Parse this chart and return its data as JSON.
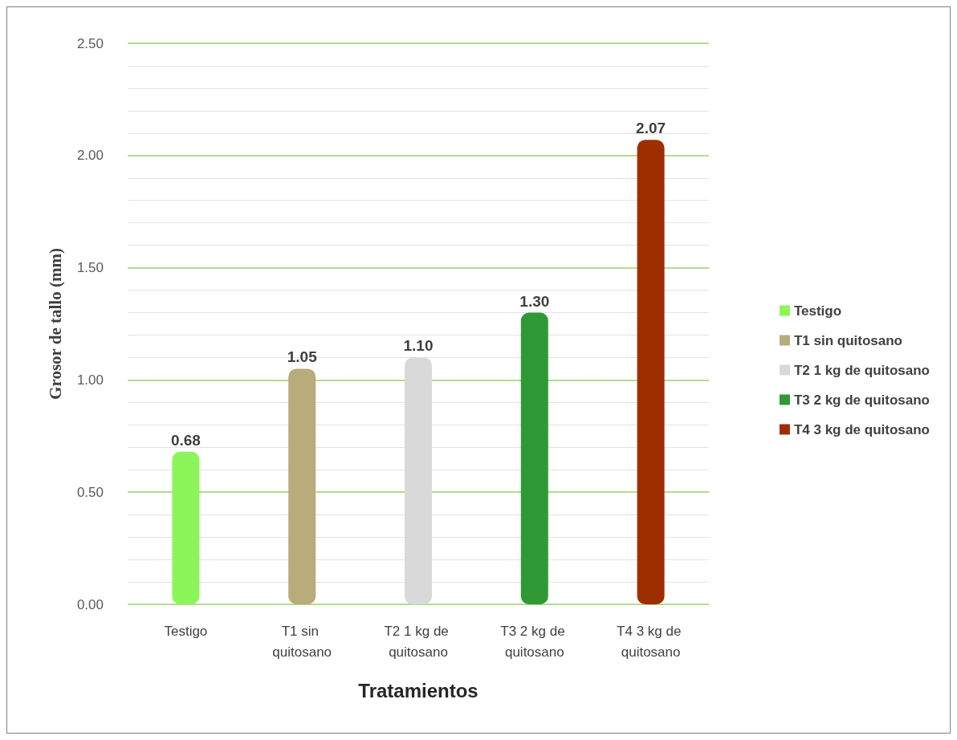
{
  "chart_data": {
    "type": "bar",
    "xlabel": "Tratamientos",
    "ylabel": "Grosor de tallo (mm)",
    "categories": [
      "Testigo",
      "T1 sin quitosano",
      "T2 1 kg de quitosano",
      "T3 2 kg de quitosano",
      "T4 3 kg de quitosano"
    ],
    "series": [
      {
        "name": "Testigo",
        "color": "#8cf55a",
        "values": [
          0.68,
          null,
          null,
          null,
          null
        ],
        "value_labels": [
          "0.68",
          null,
          null,
          null,
          null
        ]
      },
      {
        "name": "T1 sin quitosano",
        "color": "#b8ab7c",
        "values": [
          null,
          1.05,
          null,
          null,
          null
        ],
        "value_labels": [
          null,
          "1.05",
          null,
          null,
          null
        ]
      },
      {
        "name": "T2 1 kg de quitosano",
        "color": "#d9d9d9",
        "values": [
          null,
          null,
          1.1,
          null,
          null
        ],
        "value_labels": [
          null,
          null,
          "1.10",
          null,
          null
        ]
      },
      {
        "name": "T3 2 kg de quitosano",
        "color": "#2f9a35",
        "values": [
          null,
          null,
          null,
          1.3,
          null
        ],
        "value_labels": [
          null,
          null,
          null,
          "1.30",
          null
        ]
      },
      {
        "name": "T4 3 kg de quitosano",
        "color": "#9e2e00",
        "values": [
          null,
          null,
          null,
          null,
          2.07
        ],
        "value_labels": [
          null,
          null,
          null,
          null,
          "2.07"
        ]
      }
    ],
    "ylim": [
      0,
      2.5
    ],
    "yticks": [
      {
        "value": 0,
        "label": "0.00"
      },
      {
        "value": 0.5,
        "label": "0.50"
      },
      {
        "value": 1,
        "label": "1.00"
      },
      {
        "value": 1.5,
        "label": "1.50"
      },
      {
        "value": 2,
        "label": "2.00"
      },
      {
        "value": 2.5,
        "label": "2.50"
      }
    ],
    "grid": true,
    "legend": "right"
  }
}
